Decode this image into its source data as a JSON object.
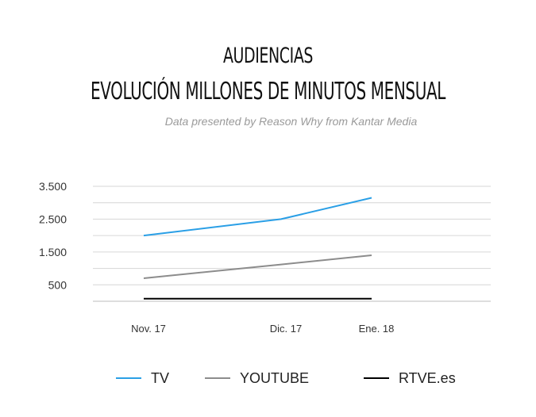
{
  "chart_data": {
    "type": "line",
    "title_line1": "AUDIENCIAS",
    "title_line2": "EVOLUCIÓN MILLONES DE MINUTOS MENSUAL",
    "subtitle": "Data presented by Reason Why from Kantar Media",
    "categories": [
      "Nov. 17",
      "Dic. 17",
      "Ene. 18"
    ],
    "y_ticks": [
      500,
      1500,
      2500,
      3500
    ],
    "y_tick_labels": [
      "500",
      "1.500",
      "2.500",
      "3.500"
    ],
    "ylim": [
      0,
      3500
    ],
    "grid": true,
    "legend_position": "bottom",
    "series": [
      {
        "name": "TV",
        "values": [
          2000,
          2500,
          3150
        ],
        "color": "#2a9fe6"
      },
      {
        "name": "YOUTUBE",
        "values": [
          700,
          1120,
          1400
        ],
        "color": "#8c8c8c"
      },
      {
        "name": "RTVE.es",
        "values": [
          80,
          80,
          80
        ],
        "color": "#000000"
      }
    ]
  }
}
